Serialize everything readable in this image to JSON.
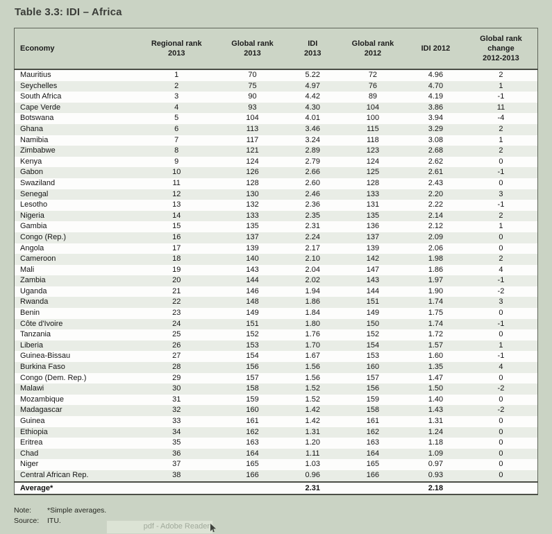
{
  "title": "Table 3.3: IDI – Africa",
  "colors": {
    "page_background": "#cad3c4",
    "header_background": "#ccd5c6",
    "row_even": "#e9ede6",
    "row_odd": "#fdfdfc",
    "rule_dark": "#4a4d45",
    "text": "#141414"
  },
  "table": {
    "columns": [
      "Economy",
      "Regional rank\n2013",
      "Global rank\n2013",
      "IDI\n2013",
      "Global rank\n2012",
      "IDI 2012",
      "Global rank\nchange\n2012-2013"
    ],
    "rows": [
      {
        "economy": "Mauritius",
        "regional_rank_2013": "1",
        "global_rank_2013": "70",
        "idi_2013": "5.22",
        "global_rank_2012": "72",
        "idi_2012": "4.96",
        "global_rank_change": "2"
      },
      {
        "economy": "Seychelles",
        "regional_rank_2013": "2",
        "global_rank_2013": "75",
        "idi_2013": "4.97",
        "global_rank_2012": "76",
        "idi_2012": "4.70",
        "global_rank_change": "1"
      },
      {
        "economy": "South Africa",
        "regional_rank_2013": "3",
        "global_rank_2013": "90",
        "idi_2013": "4.42",
        "global_rank_2012": "89",
        "idi_2012": "4.19",
        "global_rank_change": "-1"
      },
      {
        "economy": "Cape Verde",
        "regional_rank_2013": "4",
        "global_rank_2013": "93",
        "idi_2013": "4.30",
        "global_rank_2012": "104",
        "idi_2012": "3.86",
        "global_rank_change": "11"
      },
      {
        "economy": "Botswana",
        "regional_rank_2013": "5",
        "global_rank_2013": "104",
        "idi_2013": "4.01",
        "global_rank_2012": "100",
        "idi_2012": "3.94",
        "global_rank_change": "-4"
      },
      {
        "economy": "Ghana",
        "regional_rank_2013": "6",
        "global_rank_2013": "113",
        "idi_2013": "3.46",
        "global_rank_2012": "115",
        "idi_2012": "3.29",
        "global_rank_change": "2"
      },
      {
        "economy": "Namibia",
        "regional_rank_2013": "7",
        "global_rank_2013": "117",
        "idi_2013": "3.24",
        "global_rank_2012": "118",
        "idi_2012": "3.08",
        "global_rank_change": "1"
      },
      {
        "economy": "Zimbabwe",
        "regional_rank_2013": "8",
        "global_rank_2013": "121",
        "idi_2013": "2.89",
        "global_rank_2012": "123",
        "idi_2012": "2.68",
        "global_rank_change": "2"
      },
      {
        "economy": "Kenya",
        "regional_rank_2013": "9",
        "global_rank_2013": "124",
        "idi_2013": "2.79",
        "global_rank_2012": "124",
        "idi_2012": "2.62",
        "global_rank_change": "0"
      },
      {
        "economy": "Gabon",
        "regional_rank_2013": "10",
        "global_rank_2013": "126",
        "idi_2013": "2.66",
        "global_rank_2012": "125",
        "idi_2012": "2.61",
        "global_rank_change": "-1"
      },
      {
        "economy": "Swaziland",
        "regional_rank_2013": "11",
        "global_rank_2013": "128",
        "idi_2013": "2.60",
        "global_rank_2012": "128",
        "idi_2012": "2.43",
        "global_rank_change": "0"
      },
      {
        "economy": "Senegal",
        "regional_rank_2013": "12",
        "global_rank_2013": "130",
        "idi_2013": "2.46",
        "global_rank_2012": "133",
        "idi_2012": "2.20",
        "global_rank_change": "3"
      },
      {
        "economy": "Lesotho",
        "regional_rank_2013": "13",
        "global_rank_2013": "132",
        "idi_2013": "2.36",
        "global_rank_2012": "131",
        "idi_2012": "2.22",
        "global_rank_change": "-1"
      },
      {
        "economy": "Nigeria",
        "regional_rank_2013": "14",
        "global_rank_2013": "133",
        "idi_2013": "2.35",
        "global_rank_2012": "135",
        "idi_2012": "2.14",
        "global_rank_change": "2"
      },
      {
        "economy": "Gambia",
        "regional_rank_2013": "15",
        "global_rank_2013": "135",
        "idi_2013": "2.31",
        "global_rank_2012": "136",
        "idi_2012": "2.12",
        "global_rank_change": "1"
      },
      {
        "economy": "Congo (Rep.)",
        "regional_rank_2013": "16",
        "global_rank_2013": "137",
        "idi_2013": "2.24",
        "global_rank_2012": "137",
        "idi_2012": "2.09",
        "global_rank_change": "0"
      },
      {
        "economy": "Angola",
        "regional_rank_2013": "17",
        "global_rank_2013": "139",
        "idi_2013": "2.17",
        "global_rank_2012": "139",
        "idi_2012": "2.06",
        "global_rank_change": "0"
      },
      {
        "economy": "Cameroon",
        "regional_rank_2013": "18",
        "global_rank_2013": "140",
        "idi_2013": "2.10",
        "global_rank_2012": "142",
        "idi_2012": "1.98",
        "global_rank_change": "2"
      },
      {
        "economy": "Mali",
        "regional_rank_2013": "19",
        "global_rank_2013": "143",
        "idi_2013": "2.04",
        "global_rank_2012": "147",
        "idi_2012": "1.86",
        "global_rank_change": "4"
      },
      {
        "economy": "Zambia",
        "regional_rank_2013": "20",
        "global_rank_2013": "144",
        "idi_2013": "2.02",
        "global_rank_2012": "143",
        "idi_2012": "1.97",
        "global_rank_change": "-1"
      },
      {
        "economy": "Uganda",
        "regional_rank_2013": "21",
        "global_rank_2013": "146",
        "idi_2013": "1.94",
        "global_rank_2012": "144",
        "idi_2012": "1.90",
        "global_rank_change": "-2"
      },
      {
        "economy": "Rwanda",
        "regional_rank_2013": "22",
        "global_rank_2013": "148",
        "idi_2013": "1.86",
        "global_rank_2012": "151",
        "idi_2012": "1.74",
        "global_rank_change": "3"
      },
      {
        "economy": "Benin",
        "regional_rank_2013": "23",
        "global_rank_2013": "149",
        "idi_2013": "1.84",
        "global_rank_2012": "149",
        "idi_2012": "1.75",
        "global_rank_change": "0"
      },
      {
        "economy": "Côte d'Ivoire",
        "regional_rank_2013": "24",
        "global_rank_2013": "151",
        "idi_2013": "1.80",
        "global_rank_2012": "150",
        "idi_2012": "1.74",
        "global_rank_change": "-1"
      },
      {
        "economy": "Tanzania",
        "regional_rank_2013": "25",
        "global_rank_2013": "152",
        "idi_2013": "1.76",
        "global_rank_2012": "152",
        "idi_2012": "1.72",
        "global_rank_change": "0"
      },
      {
        "economy": "Liberia",
        "regional_rank_2013": "26",
        "global_rank_2013": "153",
        "idi_2013": "1.70",
        "global_rank_2012": "154",
        "idi_2012": "1.57",
        "global_rank_change": "1"
      },
      {
        "economy": "Guinea-Bissau",
        "regional_rank_2013": "27",
        "global_rank_2013": "154",
        "idi_2013": "1.67",
        "global_rank_2012": "153",
        "idi_2012": "1.60",
        "global_rank_change": "-1"
      },
      {
        "economy": "Burkina Faso",
        "regional_rank_2013": "28",
        "global_rank_2013": "156",
        "idi_2013": "1.56",
        "global_rank_2012": "160",
        "idi_2012": "1.35",
        "global_rank_change": "4"
      },
      {
        "economy": "Congo (Dem. Rep.)",
        "regional_rank_2013": "29",
        "global_rank_2013": "157",
        "idi_2013": "1.56",
        "global_rank_2012": "157",
        "idi_2012": "1.47",
        "global_rank_change": "0"
      },
      {
        "economy": "Malawi",
        "regional_rank_2013": "30",
        "global_rank_2013": "158",
        "idi_2013": "1.52",
        "global_rank_2012": "156",
        "idi_2012": "1.50",
        "global_rank_change": "-2"
      },
      {
        "economy": "Mozambique",
        "regional_rank_2013": "31",
        "global_rank_2013": "159",
        "idi_2013": "1.52",
        "global_rank_2012": "159",
        "idi_2012": "1.40",
        "global_rank_change": "0"
      },
      {
        "economy": "Madagascar",
        "regional_rank_2013": "32",
        "global_rank_2013": "160",
        "idi_2013": "1.42",
        "global_rank_2012": "158",
        "idi_2012": "1.43",
        "global_rank_change": "-2"
      },
      {
        "economy": "Guinea",
        "regional_rank_2013": "33",
        "global_rank_2013": "161",
        "idi_2013": "1.42",
        "global_rank_2012": "161",
        "idi_2012": "1.31",
        "global_rank_change": "0"
      },
      {
        "economy": "Ethiopia",
        "regional_rank_2013": "34",
        "global_rank_2013": "162",
        "idi_2013": "1.31",
        "global_rank_2012": "162",
        "idi_2012": "1.24",
        "global_rank_change": "0"
      },
      {
        "economy": "Eritrea",
        "regional_rank_2013": "35",
        "global_rank_2013": "163",
        "idi_2013": "1.20",
        "global_rank_2012": "163",
        "idi_2012": "1.18",
        "global_rank_change": "0"
      },
      {
        "economy": "Chad",
        "regional_rank_2013": "36",
        "global_rank_2013": "164",
        "idi_2013": "1.11",
        "global_rank_2012": "164",
        "idi_2012": "1.09",
        "global_rank_change": "0"
      },
      {
        "economy": "Niger",
        "regional_rank_2013": "37",
        "global_rank_2013": "165",
        "idi_2013": "1.03",
        "global_rank_2012": "165",
        "idi_2012": "0.97",
        "global_rank_change": "0"
      },
      {
        "economy": "Central African Rep.",
        "regional_rank_2013": "38",
        "global_rank_2013": "166",
        "idi_2013": "0.96",
        "global_rank_2012": "166",
        "idi_2012": "0.93",
        "global_rank_change": "0"
      }
    ],
    "average": {
      "label": "Average*",
      "idi_2013": "2.31",
      "idi_2012": "2.18"
    }
  },
  "notes": {
    "note_label": "Note:",
    "note_text": "*Simple averages.",
    "source_label": "Source:",
    "source_text": "ITU."
  },
  "artifact": {
    "background_window_title": "pdf - Adobe Reader"
  }
}
